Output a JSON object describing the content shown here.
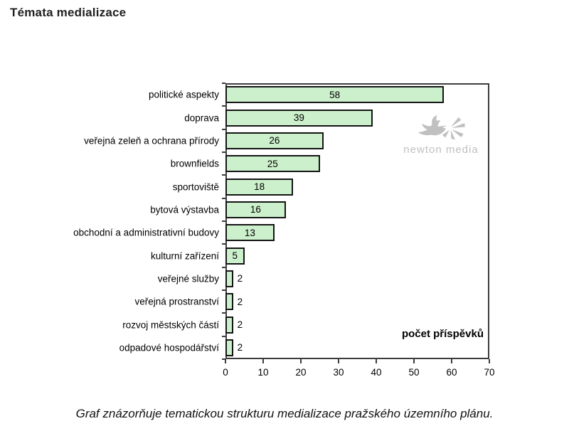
{
  "page": {
    "title": "Témata medializace",
    "caption": "Graf znázorňuje tematickou strukturu medializace pražského územního plánu."
  },
  "watermark": {
    "text": "newton media"
  },
  "chart_data": {
    "type": "bar",
    "orientation": "horizontal",
    "title": "Témata medializace",
    "xlabel": "počet příspěvků",
    "ylabel": "",
    "categories": [
      "politické aspekty",
      "doprava",
      "veřejná zeleň a ochrana přírody",
      "brownfields",
      "sportoviště",
      "bytová výstavba",
      "obchodní a administrativní budovy",
      "kulturní zařízení",
      "veřejné služby",
      "veřejná prostranství",
      "rozvoj městských částí",
      "odpadové hospodářství"
    ],
    "values": [
      58,
      39,
      26,
      25,
      18,
      16,
      13,
      5,
      2,
      2,
      2,
      2
    ],
    "xlim": [
      0,
      70
    ],
    "xticks": [
      0,
      10,
      20,
      30,
      40,
      50,
      60,
      70
    ],
    "grid": false,
    "legend": false,
    "bar_color": "#ccf0cc",
    "bar_border_color": "#141414"
  }
}
